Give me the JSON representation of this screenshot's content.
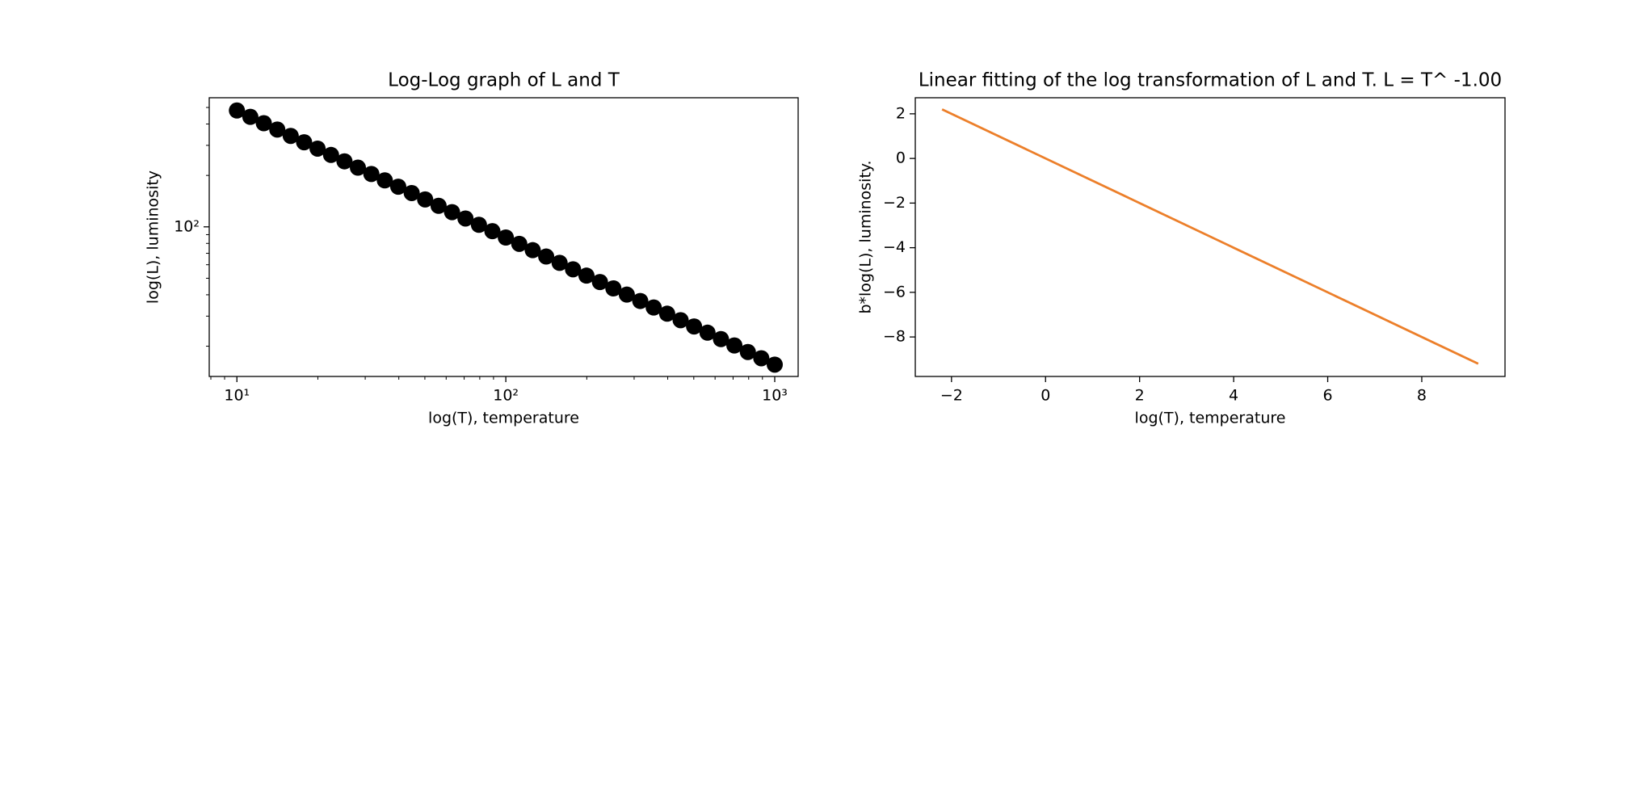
{
  "chart_data": [
    {
      "type": "scatter",
      "title": "Log-Log graph of L and T",
      "x_label": "log(T), temperature",
      "y_label": "log(L), luminosity",
      "xscale": "log",
      "yscale": "log",
      "color": "#000000",
      "x": [
        10,
        11.22,
        12.59,
        14.13,
        15.85,
        17.78,
        19.95,
        22.39,
        25.12,
        28.18,
        31.62,
        35.48,
        39.81,
        44.67,
        50.12,
        56.23,
        63.1,
        70.79,
        79.43,
        89.13,
        100,
        112.2,
        125.9,
        141.3,
        158.5,
        177.8,
        199.5,
        223.9,
        251.2,
        281.8,
        316.2,
        354.8,
        398.1,
        446.7,
        501.2,
        562.3,
        631,
        707.9,
        794.3,
        891.3,
        1000
      ],
      "values": [
        480,
        440.6,
        404.4,
        371.2,
        340.8,
        312.8,
        287.1,
        263.6,
        241.9,
        222.1,
        203.9,
        187.1,
        171.8,
        157.7,
        144.7,
        132.8,
        121.9,
        111.9,
        102.8,
        94.3,
        86.6,
        79.5,
        73.0,
        67.0,
        61.5,
        56.4,
        51.8,
        47.5,
        43.6,
        40.1,
        36.8,
        33.7,
        31.0,
        28.4,
        26.1,
        24.0,
        22.0,
        20.2,
        18.5,
        17.0,
        15.6
      ],
      "xlim": [
        7.89,
        1222
      ],
      "ylim": [
        13.3,
        570
      ],
      "xticks": [
        {
          "value": 10,
          "label": "10¹"
        },
        {
          "value": 100,
          "label": "10²"
        },
        {
          "value": 1000,
          "label": "10³"
        }
      ],
      "yticks": [
        {
          "value": 100,
          "label": "10²"
        }
      ]
    },
    {
      "type": "line",
      "title": "Linear fitting of the log transformation of L and T. L = T^ -1.00",
      "x_label": "log(T), temperature",
      "y_label": "b*log(L), luminosity.",
      "color": "#ec7f2a",
      "x": [
        -2.2,
        9.2
      ],
      "values": [
        2.2,
        -9.2
      ],
      "xlim": [
        -2.77,
        9.77
      ],
      "ylim": [
        -9.77,
        2.72
      ],
      "xticks": [
        {
          "value": -2,
          "label": "−2"
        },
        0,
        2,
        4,
        6,
        8
      ],
      "yticks": [
        {
          "value": -8,
          "label": "−8"
        },
        {
          "value": -6,
          "label": "−6"
        },
        {
          "value": -4,
          "label": "−4"
        },
        {
          "value": -2,
          "label": "−2"
        },
        0,
        2
      ]
    }
  ]
}
